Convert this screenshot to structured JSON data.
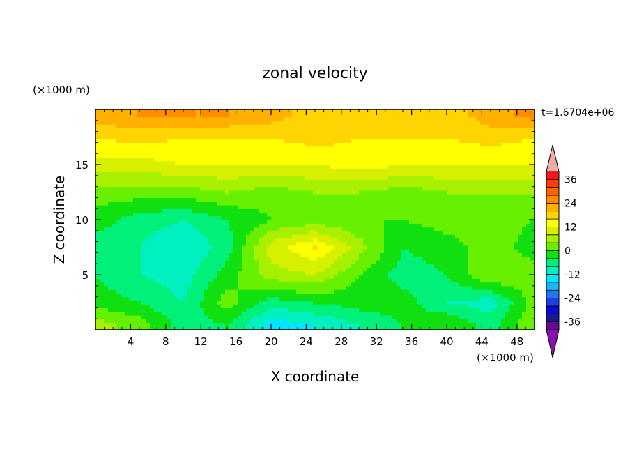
{
  "chart_data": {
    "type": "heatmap",
    "title": "zonal velocity",
    "xlabel": "X coordinate",
    "ylabel": "Z coordinate",
    "x_unit": "(×1000 m)",
    "y_unit": "(×1000 m)",
    "time_label": "t=1.6704e+06",
    "xlim": [
      0,
      50
    ],
    "ylim": [
      0,
      20
    ],
    "x_ticks": [
      4,
      8,
      12,
      16,
      20,
      24,
      28,
      32,
      36,
      40,
      44,
      48
    ],
    "y_ticks": [
      5,
      10,
      15
    ],
    "colorbar": {
      "levels": [
        -40,
        -36,
        -32,
        -28,
        -24,
        -20,
        -16,
        -12,
        -8,
        -4,
        0,
        4,
        8,
        12,
        16,
        20,
        24,
        28,
        32,
        36,
        40
      ],
      "tick_labels": [
        "36",
        "24",
        "12",
        "0",
        "-12",
        "-24",
        "-36"
      ],
      "tick_values": [
        36,
        24,
        12,
        0,
        -12,
        -24,
        -36
      ],
      "colors": [
        "#6a0a9a",
        "#1a1a8c",
        "#0a0ad0",
        "#1e3ee6",
        "#1e78f0",
        "#1eb4f0",
        "#00e6ff",
        "#00f0c0",
        "#00f07a",
        "#10e010",
        "#66f000",
        "#a6f000",
        "#d6f000",
        "#ffff00",
        "#ffd400",
        "#ffb000",
        "#ff8c00",
        "#ff6400",
        "#ff3c00",
        "#ff1414"
      ],
      "under_color": "#8a10b0",
      "over_color": "#f4a9a9"
    },
    "z_values_sample": {
      "x": [
        0,
        5,
        10,
        15,
        20,
        25,
        30,
        35,
        40,
        45,
        50
      ],
      "z": [
        0.5,
        2.5,
        5,
        7.5,
        10,
        12.5,
        15,
        17.5,
        19.5
      ],
      "u": [
        [
          6,
          2,
          -6,
          -4,
          -14,
          -12,
          -8,
          -4,
          0,
          -6,
          4
        ],
        [
          -2,
          -4,
          -8,
          2,
          -6,
          -4,
          -2,
          -2,
          -8,
          -10,
          2
        ],
        [
          -4,
          -8,
          -10,
          -2,
          6,
          8,
          0,
          -6,
          -4,
          4,
          2
        ],
        [
          -6,
          -8,
          -12,
          -6,
          10,
          16,
          6,
          -4,
          -2,
          2,
          -2
        ],
        [
          -2,
          -6,
          -8,
          -4,
          0,
          2,
          0,
          0,
          2,
          2,
          0
        ],
        [
          2,
          2,
          2,
          4,
          2,
          4,
          4,
          2,
          4,
          4,
          4
        ],
        [
          10,
          10,
          12,
          12,
          12,
          12,
          14,
          12,
          12,
          12,
          12
        ],
        [
          16,
          18,
          16,
          16,
          16,
          18,
          16,
          16,
          16,
          18,
          16
        ],
        [
          22,
          24,
          24,
          24,
          22,
          18,
          18,
          18,
          18,
          22,
          26
        ]
      ]
    }
  }
}
